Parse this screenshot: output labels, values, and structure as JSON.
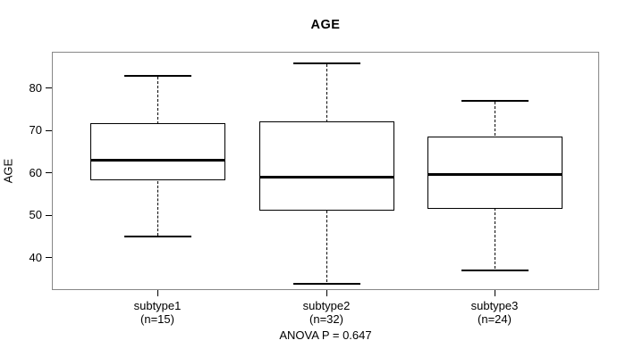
{
  "title": "AGE",
  "chart_data": {
    "type": "boxplot",
    "title": "AGE",
    "ylabel": "AGE",
    "xlabel": "",
    "yticks": [
      40,
      50,
      60,
      70,
      80
    ],
    "ylim": [
      31.5,
      88.5
    ],
    "grid": false,
    "annotation": "ANOVA P = 0.647",
    "categories": [
      "subtype1",
      "subtype2",
      "subtype3"
    ],
    "category_sublabels": [
      "(n=15)",
      "(n=32)",
      "(n=24)"
    ],
    "series": [
      {
        "name": "subtype1",
        "n": 15,
        "whisker_low": 45,
        "q1": 58,
        "median": 63,
        "q3": 71.5,
        "whisker_high": 83
      },
      {
        "name": "subtype2",
        "n": 32,
        "whisker_low": 34,
        "q1": 51,
        "median": 59,
        "q3": 72,
        "whisker_high": 86
      },
      {
        "name": "subtype3",
        "n": 24,
        "whisker_low": 37,
        "q1": 51.5,
        "median": 59.5,
        "q3": 68.5,
        "whisker_high": 77
      }
    ]
  },
  "colors": {
    "background": "#ffffff",
    "frame": "#878787",
    "box_line": "#000000",
    "median_line": "#000000",
    "text": "#000000"
  }
}
